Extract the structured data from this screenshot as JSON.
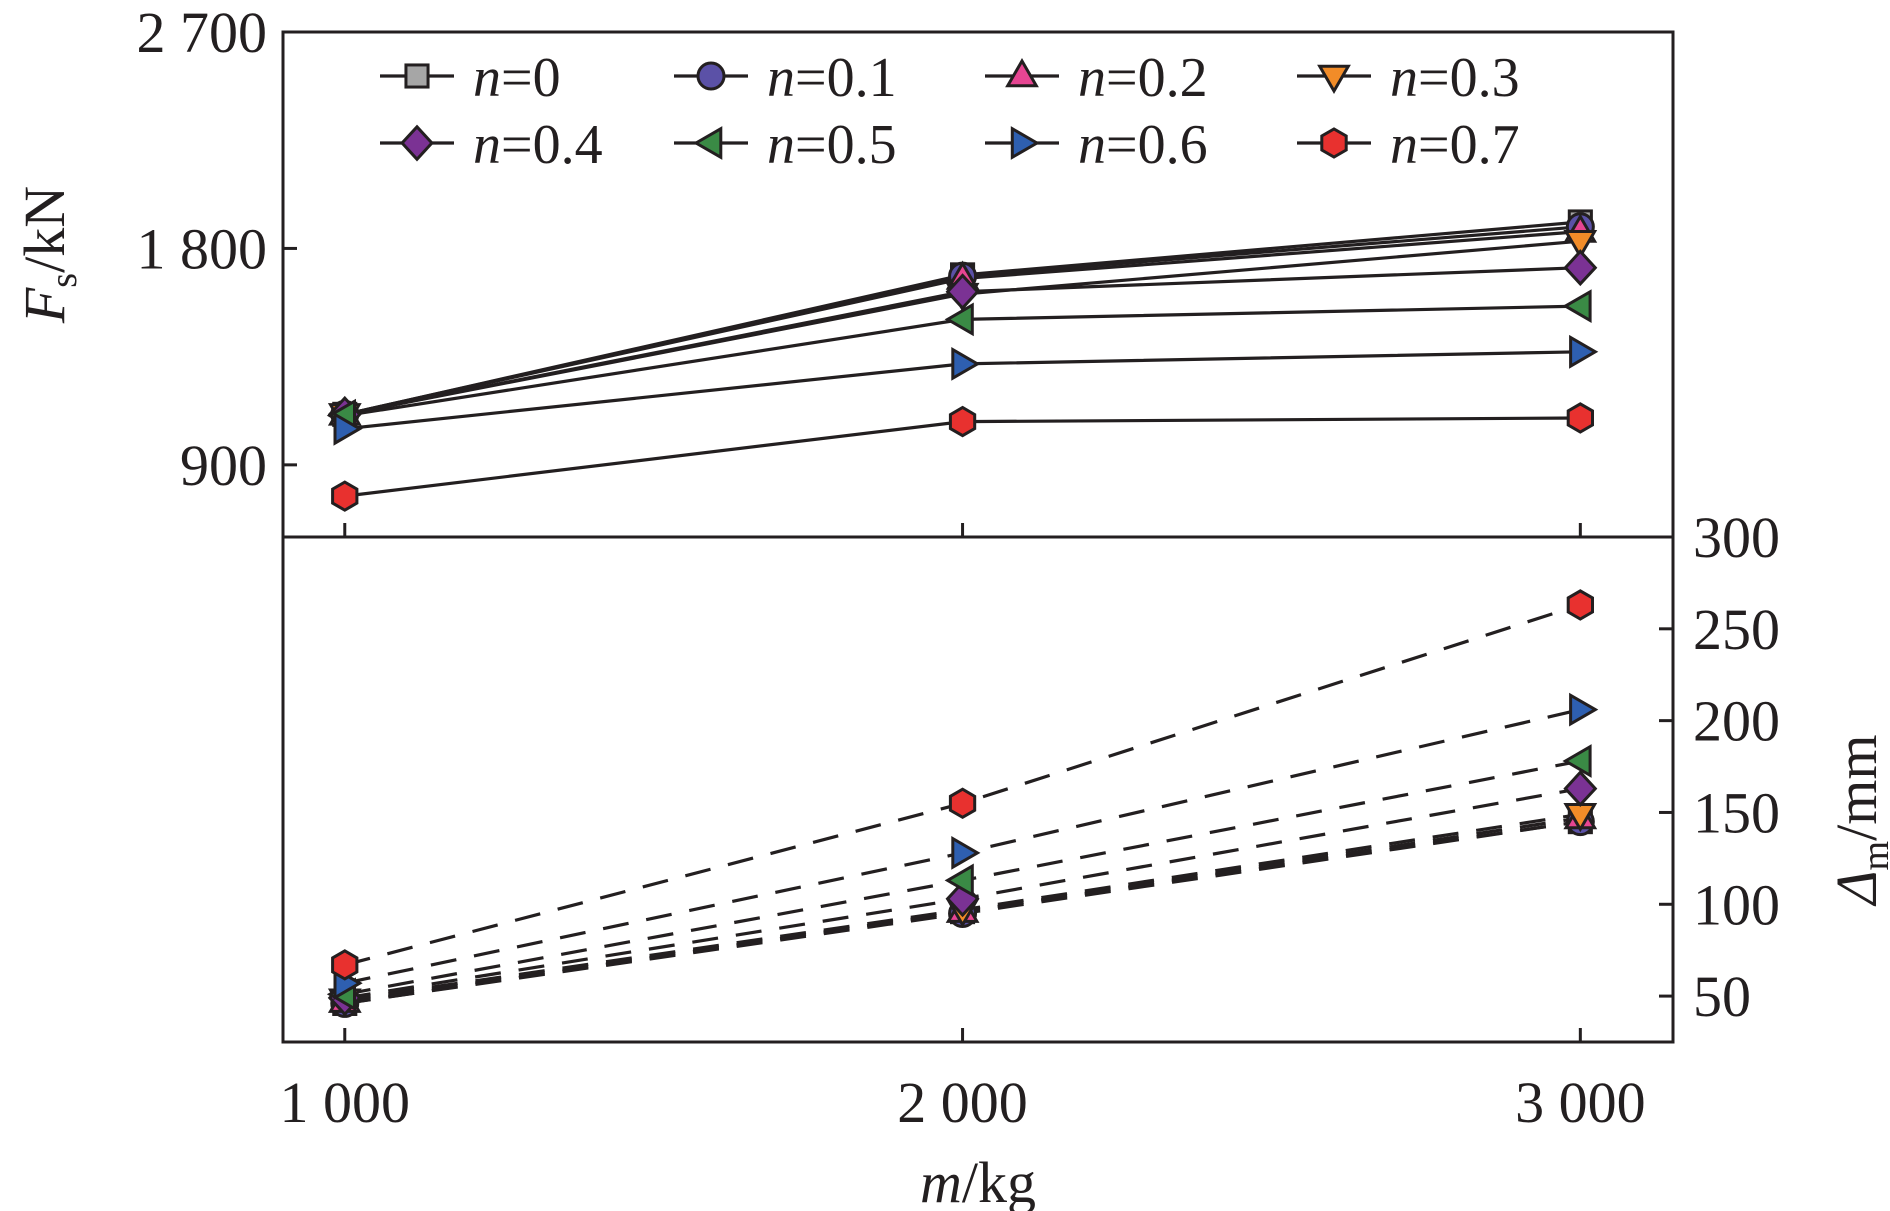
{
  "chart_data": {
    "type": "line",
    "x": [
      1000,
      2000,
      3000
    ],
    "x_tick_labels": [
      "1 000",
      "2 000",
      "3 000"
    ],
    "xlabel": {
      "italic": "m",
      "rest": "/kg"
    },
    "series_markers": {
      "0": {
        "marker": "square",
        "color": "#a6a6a6"
      },
      "0.1": {
        "marker": "circle",
        "color": "#5b51a7"
      },
      "0.2": {
        "marker": "triangle-up",
        "color": "#e64592"
      },
      "0.3": {
        "marker": "triangle-down",
        "color": "#f28c28"
      },
      "0.4": {
        "marker": "diamond",
        "color": "#7b3294"
      },
      "0.5": {
        "marker": "triangle-left",
        "color": "#3a8a45"
      },
      "0.6": {
        "marker": "triangle-right",
        "color": "#2e5fb0"
      },
      "0.7": {
        "marker": "hexagon",
        "color": "#e8312f"
      }
    },
    "legend": [
      {
        "prefix": "n",
        "label": "=0",
        "key": "0"
      },
      {
        "prefix": "n",
        "label": "=0.1",
        "key": "0.1"
      },
      {
        "prefix": "n",
        "label": "=0.2",
        "key": "0.2"
      },
      {
        "prefix": "n",
        "label": "=0.3",
        "key": "0.3"
      },
      {
        "prefix": "n",
        "label": "=0.4",
        "key": "0.4"
      },
      {
        "prefix": "n",
        "label": "=0.5",
        "key": "0.5"
      },
      {
        "prefix": "n",
        "label": "=0.6",
        "key": "0.6"
      },
      {
        "prefix": "n",
        "label": "=0.7",
        "key": "0.7"
      }
    ],
    "legend_position": "top",
    "panels": [
      {
        "id": "top",
        "y_axis_side": "left",
        "ylabel": {
          "italic": "F",
          "sub": "s",
          "rest": "/kN"
        },
        "ylim": [
          600,
          2700
        ],
        "y_ticks": [
          900,
          1800,
          2700
        ],
        "y_tick_labels": [
          "900",
          "1 800",
          "2 700"
        ],
        "line_style": "solid",
        "series": [
          {
            "key": "0",
            "values": [
              1110,
              1690,
              1910
            ]
          },
          {
            "key": "0.1",
            "values": [
              1110,
              1685,
              1890
            ]
          },
          {
            "key": "0.2",
            "values": [
              1110,
              1675,
              1870
            ]
          },
          {
            "key": "0.3",
            "values": [
              1110,
              1610,
              1830
            ]
          },
          {
            "key": "0.4",
            "values": [
              1110,
              1620,
              1720
            ]
          },
          {
            "key": "0.5",
            "values": [
              1105,
              1505,
              1560
            ]
          },
          {
            "key": "0.6",
            "values": [
              1050,
              1320,
              1370
            ]
          },
          {
            "key": "0.7",
            "values": [
              770,
              1080,
              1095
            ]
          }
        ]
      },
      {
        "id": "bottom",
        "y_axis_side": "right",
        "ylabel": {
          "italic": "Δ",
          "sub": "m",
          "rest": "/mm"
        },
        "ylim": [
          25,
          300
        ],
        "y_ticks": [
          50,
          100,
          150,
          200,
          250,
          300
        ],
        "y_tick_labels": [
          "50",
          "100",
          "150",
          "200",
          "250",
          "300"
        ],
        "line_style": "dashed",
        "series": [
          {
            "key": "0",
            "values": [
              46,
              96,
              145
            ]
          },
          {
            "key": "0.1",
            "values": [
              46,
              95,
              145
            ]
          },
          {
            "key": "0.2",
            "values": [
              47,
              96,
              147
            ]
          },
          {
            "key": "0.3",
            "values": [
              48,
              97,
              149
            ]
          },
          {
            "key": "0.4",
            "values": [
              49,
              103,
              163
            ]
          },
          {
            "key": "0.5",
            "values": [
              51,
              113,
              178
            ]
          },
          {
            "key": "0.6",
            "values": [
              57,
              128,
              206
            ]
          },
          {
            "key": "0.7",
            "values": [
              67,
              155,
              263
            ]
          }
        ]
      }
    ]
  }
}
